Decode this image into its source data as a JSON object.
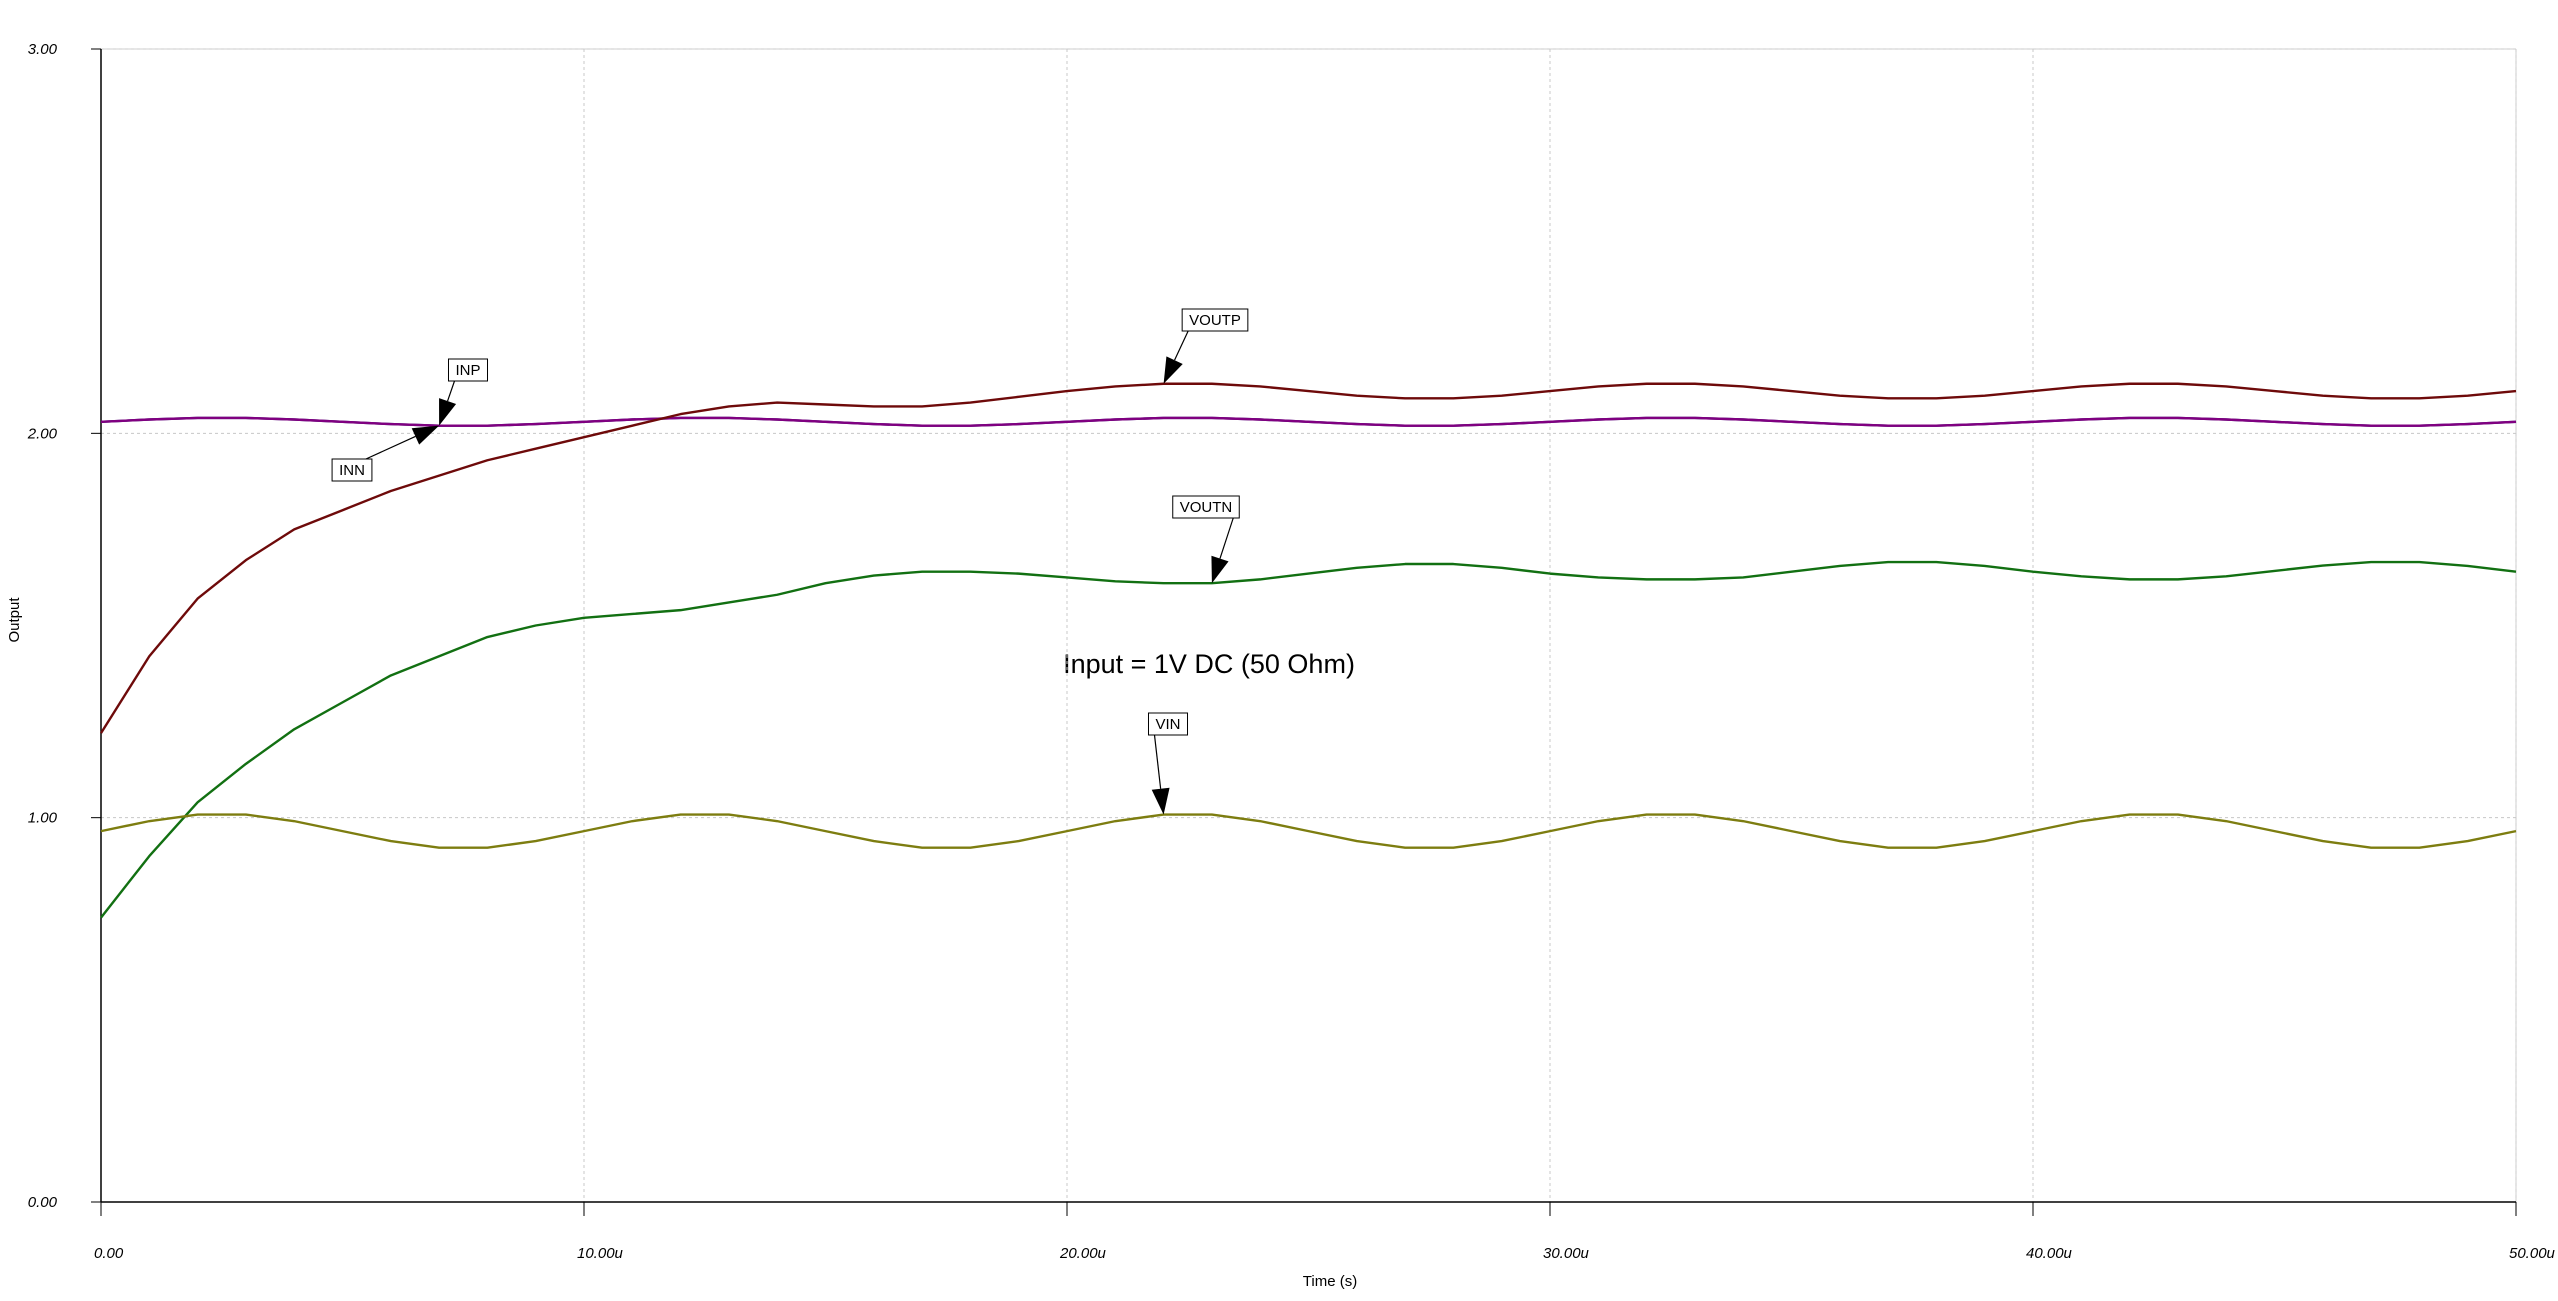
{
  "chart_data": {
    "type": "line",
    "xlabel": "Time (s)",
    "ylabel": "Output",
    "annotation": "Input = 1V DC (50 Ohm)",
    "grid": true,
    "xlim": [
      0,
      5e-05
    ],
    "ylim": [
      0,
      3
    ],
    "xticks": [
      {
        "value": 0,
        "label": "0.00"
      },
      {
        "value": 1e-05,
        "label": "10.00u"
      },
      {
        "value": 2e-05,
        "label": "20.00u"
      },
      {
        "value": 3e-05,
        "label": "30.00u"
      },
      {
        "value": 4e-05,
        "label": "40.00u"
      },
      {
        "value": 5e-05,
        "label": "50.00u"
      }
    ],
    "yticks": [
      {
        "value": 0,
        "label": "0.00"
      },
      {
        "value": 1,
        "label": "1.00"
      },
      {
        "value": 2,
        "label": "2.00"
      },
      {
        "value": 3,
        "label": "3.00"
      }
    ],
    "x": [
      0,
      1e-06,
      2e-06,
      3e-06,
      4e-06,
      5e-06,
      6e-06,
      7e-06,
      8e-06,
      9e-06,
      1e-05,
      1.1e-05,
      1.2e-05,
      1.3e-05,
      1.4e-05,
      1.5e-05,
      1.6e-05,
      1.7e-05,
      1.8e-05,
      1.9e-05,
      2e-05,
      2.1e-05,
      2.2e-05,
      2.3e-05,
      2.4e-05,
      2.5e-05,
      2.6e-05,
      2.7e-05,
      2.8e-05,
      2.9e-05,
      3e-05,
      3.1e-05,
      3.2e-05,
      3.3e-05,
      3.4e-05,
      3.5e-05,
      3.6e-05,
      3.7e-05,
      3.8e-05,
      3.9e-05,
      4e-05,
      4.1e-05,
      4.2e-05,
      4.3e-05,
      4.4e-05,
      4.5e-05,
      4.6e-05,
      4.7e-05,
      4.8e-05,
      4.9e-05,
      5e-05
    ],
    "series": [
      {
        "name": "INP",
        "color": "#30207a",
        "values": [
          2.03,
          2.036,
          2.04,
          2.04,
          2.036,
          2.03,
          2.024,
          2.02,
          2.02,
          2.024,
          2.03,
          2.036,
          2.04,
          2.04,
          2.036,
          2.03,
          2.024,
          2.02,
          2.02,
          2.024,
          2.03,
          2.036,
          2.04,
          2.04,
          2.036,
          2.03,
          2.024,
          2.02,
          2.02,
          2.024,
          2.03,
          2.036,
          2.04,
          2.04,
          2.036,
          2.03,
          2.024,
          2.02,
          2.02,
          2.024,
          2.03,
          2.036,
          2.04,
          2.04,
          2.036,
          2.03,
          2.024,
          2.02,
          2.02,
          2.024,
          2.03
        ]
      },
      {
        "name": "INN",
        "color": "#800080",
        "values": [
          2.03,
          2.036,
          2.04,
          2.04,
          2.036,
          2.03,
          2.024,
          2.02,
          2.02,
          2.024,
          2.03,
          2.036,
          2.04,
          2.04,
          2.036,
          2.03,
          2.024,
          2.02,
          2.02,
          2.024,
          2.03,
          2.036,
          2.04,
          2.04,
          2.036,
          2.03,
          2.024,
          2.02,
          2.02,
          2.024,
          2.03,
          2.036,
          2.04,
          2.04,
          2.036,
          2.03,
          2.024,
          2.02,
          2.02,
          2.024,
          2.03,
          2.036,
          2.04,
          2.04,
          2.036,
          2.03,
          2.024,
          2.02,
          2.02,
          2.024,
          2.03
        ]
      },
      {
        "name": "VOUTP",
        "color": "#6e0a0a",
        "values": [
          1.22,
          1.42,
          1.57,
          1.67,
          1.75,
          1.8,
          1.85,
          1.89,
          1.93,
          1.96,
          1.99,
          2.02,
          2.05,
          2.07,
          2.08,
          2.075,
          2.07,
          2.07,
          2.08,
          2.095,
          2.11,
          2.122,
          2.129,
          2.129,
          2.122,
          2.11,
          2.098,
          2.091,
          2.091,
          2.098,
          2.11,
          2.122,
          2.129,
          2.129,
          2.122,
          2.11,
          2.098,
          2.091,
          2.091,
          2.098,
          2.11,
          2.122,
          2.129,
          2.129,
          2.122,
          2.11,
          2.098,
          2.091,
          2.091,
          2.098,
          2.11
        ]
      },
      {
        "name": "VOUTN",
        "color": "#127012",
        "values": [
          0.74,
          0.9,
          1.04,
          1.14,
          1.23,
          1.3,
          1.37,
          1.42,
          1.47,
          1.5,
          1.52,
          1.53,
          1.54,
          1.56,
          1.58,
          1.61,
          1.63,
          1.64,
          1.64,
          1.635,
          1.625,
          1.615,
          1.61,
          1.61,
          1.62,
          1.635,
          1.65,
          1.66,
          1.66,
          1.65,
          1.635,
          1.625,
          1.62,
          1.62,
          1.625,
          1.64,
          1.655,
          1.665,
          1.665,
          1.655,
          1.64,
          1.628,
          1.62,
          1.62,
          1.628,
          1.642,
          1.656,
          1.665,
          1.665,
          1.655,
          1.64
        ]
      },
      {
        "name": "VIN",
        "color": "#7d7d10",
        "values": [
          0.965,
          0.991,
          1.008,
          1.008,
          0.991,
          0.965,
          0.939,
          0.922,
          0.922,
          0.939,
          0.965,
          0.991,
          1.008,
          1.008,
          0.991,
          0.965,
          0.939,
          0.922,
          0.922,
          0.939,
          0.965,
          0.991,
          1.008,
          1.008,
          0.991,
          0.965,
          0.939,
          0.922,
          0.922,
          0.939,
          0.965,
          0.991,
          1.008,
          1.008,
          0.991,
          0.965,
          0.939,
          0.922,
          0.922,
          0.939,
          0.965,
          0.991,
          1.008,
          1.008,
          0.991,
          0.965,
          0.939,
          0.922,
          0.922,
          0.939,
          0.965
        ]
      }
    ]
  }
}
